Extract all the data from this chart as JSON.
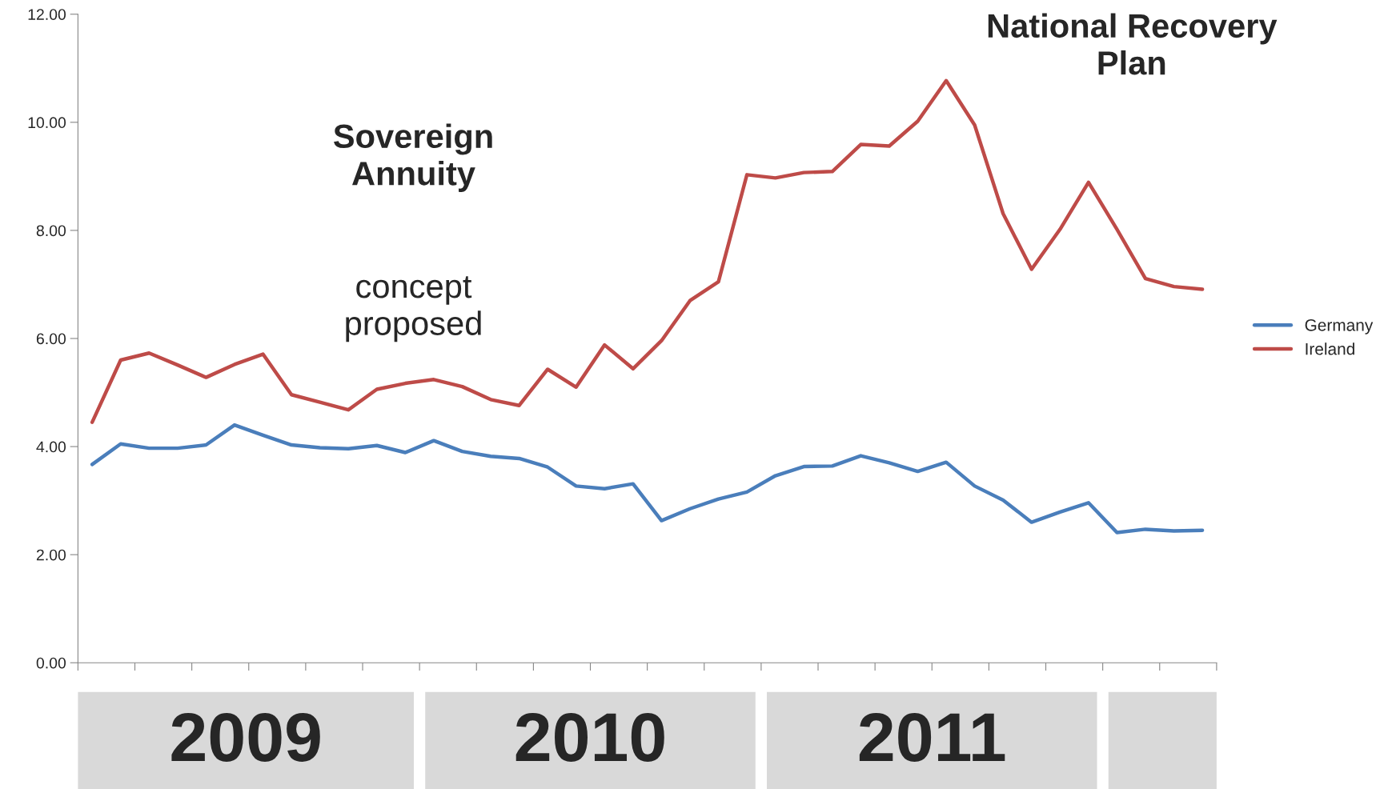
{
  "chart_data": {
    "type": "line",
    "categories": [
      null,
      null,
      null,
      null,
      null,
      null,
      null,
      null,
      null,
      null,
      null,
      null,
      null,
      null,
      null,
      null,
      null,
      null,
      null,
      null,
      null,
      null,
      null,
      null,
      null,
      null,
      null,
      null,
      null,
      null,
      null,
      null,
      null,
      null,
      null,
      null,
      null,
      null,
      null,
      null
    ],
    "series": [
      {
        "name": "Germany",
        "color": "#4a7ebb",
        "values": [
          3.67,
          4.05,
          3.97,
          3.97,
          4.03,
          4.4,
          4.21,
          4.03,
          3.98,
          3.96,
          4.02,
          3.89,
          4.11,
          3.91,
          3.82,
          3.78,
          3.62,
          3.27,
          3.22,
          3.31,
          2.63,
          2.85,
          3.03,
          3.16,
          3.46,
          3.63,
          3.64,
          3.83,
          3.7,
          3.54,
          3.71,
          3.27,
          3.01,
          2.6,
          2.79,
          2.96,
          2.41,
          2.47,
          2.44,
          2.45
        ]
      },
      {
        "name": "Ireland",
        "color": "#be4b48",
        "values": [
          4.45,
          5.6,
          5.73,
          5.51,
          5.28,
          5.52,
          5.71,
          4.96,
          4.82,
          4.68,
          5.06,
          5.17,
          5.24,
          5.11,
          4.87,
          4.76,
          5.43,
          5.1,
          5.88,
          5.44,
          5.96,
          6.7,
          7.05,
          9.03,
          8.97,
          9.07,
          9.09,
          9.59,
          9.56,
          10.02,
          10.77,
          9.95,
          8.31,
          7.28,
          8.02,
          8.89,
          8.02,
          7.11,
          6.96,
          6.91
        ]
      }
    ],
    "ylim": [
      0,
      12
    ],
    "yticks": [
      {
        "value": 0,
        "label": "0.00"
      },
      {
        "value": 2,
        "label": "2.00"
      },
      {
        "value": 4,
        "label": "4.00"
      },
      {
        "value": 6,
        "label": "6.00"
      },
      {
        "value": 8,
        "label": "8.00"
      },
      {
        "value": 10,
        "label": "10.00"
      },
      {
        "value": 12,
        "label": "12.00"
      }
    ],
    "legend": "right",
    "grid": false,
    "marker": "none",
    "line_style": "solid",
    "annotations": [
      "Sovereign\nAnnuity",
      "concept\nproposed",
      "National Recovery\nPlan",
      "2009",
      "2010",
      "2011"
    ]
  }
}
